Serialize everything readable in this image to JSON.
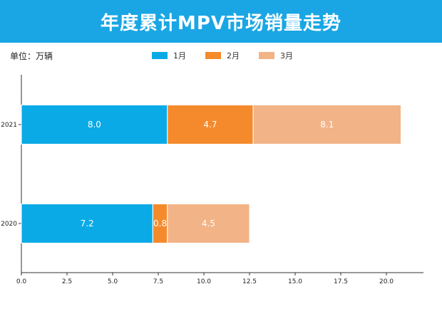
{
  "header": {
    "title": "年度累计MPV市场销量走势"
  },
  "unit_label": "单位：万辆",
  "colors": {
    "title_bg": "#1aa6e4",
    "jan": "#0aaae6",
    "feb": "#f58a2c",
    "mar": "#f2b386"
  },
  "chart_data": {
    "type": "bar",
    "orientation": "horizontal",
    "stacked": true,
    "title": "年度累计MPV市场销量走势",
    "xlabel": "",
    "ylabel": "",
    "xlim": [
      0,
      22
    ],
    "xticks": [
      "0.0",
      "2.5",
      "5.0",
      "7.5",
      "10.0",
      "12.5",
      "15.0",
      "17.5",
      "20.0"
    ],
    "categories": [
      "2021",
      "2020"
    ],
    "series": [
      {
        "name": "1月",
        "color": "#0aaae6",
        "values": [
          8.0,
          7.2
        ],
        "labels": [
          "8.0",
          "7.2"
        ]
      },
      {
        "name": "2月",
        "color": "#f58a2c",
        "values": [
          4.7,
          0.8
        ],
        "labels": [
          "4.7",
          "0.8"
        ]
      },
      {
        "name": "3月",
        "color": "#f2b386",
        "values": [
          8.1,
          4.5
        ],
        "labels": [
          "8.1",
          "4.5"
        ]
      }
    ],
    "legend": "top-center",
    "grid": false
  }
}
